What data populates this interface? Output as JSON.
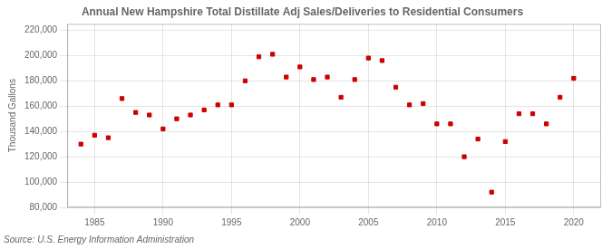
{
  "chart_data": {
    "type": "scatter",
    "title": "Annual New Hampshire Total Distillate Adj Sales/Deliveries to Residential Consumers",
    "ylabel": "Thousand Gallons",
    "source": "Source: U.S. Energy Information Administration",
    "color": "#cc0000",
    "marker": "square",
    "grid": true,
    "xlim": [
      1983,
      2022
    ],
    "ylim": [
      80000,
      225000
    ],
    "xticks": [
      1985,
      1990,
      1995,
      2000,
      2005,
      2010,
      2015,
      2020
    ],
    "yticks": [
      {
        "value": 80000,
        "label": "80,000"
      },
      {
        "value": 100000,
        "label": "100,000"
      },
      {
        "value": 120000,
        "label": "120,000"
      },
      {
        "value": 140000,
        "label": "140,000"
      },
      {
        "value": 160000,
        "label": "160,000"
      },
      {
        "value": 180000,
        "label": "180,000"
      },
      {
        "value": 200000,
        "label": "200,000"
      },
      {
        "value": 220000,
        "label": "220,000"
      }
    ],
    "x": [
      1984,
      1985,
      1986,
      1987,
      1988,
      1989,
      1990,
      1991,
      1992,
      1993,
      1994,
      1995,
      1996,
      1997,
      1998,
      1999,
      2000,
      2001,
      2002,
      2003,
      2004,
      2005,
      2006,
      2007,
      2008,
      2009,
      2010,
      2011,
      2012,
      2013,
      2014,
      2015,
      2016,
      2017,
      2018,
      2019,
      2020
    ],
    "values": [
      130000,
      137000,
      135000,
      166000,
      155000,
      153000,
      142000,
      150000,
      153000,
      157000,
      161000,
      161000,
      180000,
      199000,
      201000,
      183000,
      191000,
      181000,
      183000,
      167000,
      181000,
      198000,
      196000,
      175000,
      161000,
      162000,
      146000,
      146000,
      120000,
      134000,
      92000,
      132000,
      154000,
      154000,
      146000,
      167000,
      182000
    ]
  }
}
